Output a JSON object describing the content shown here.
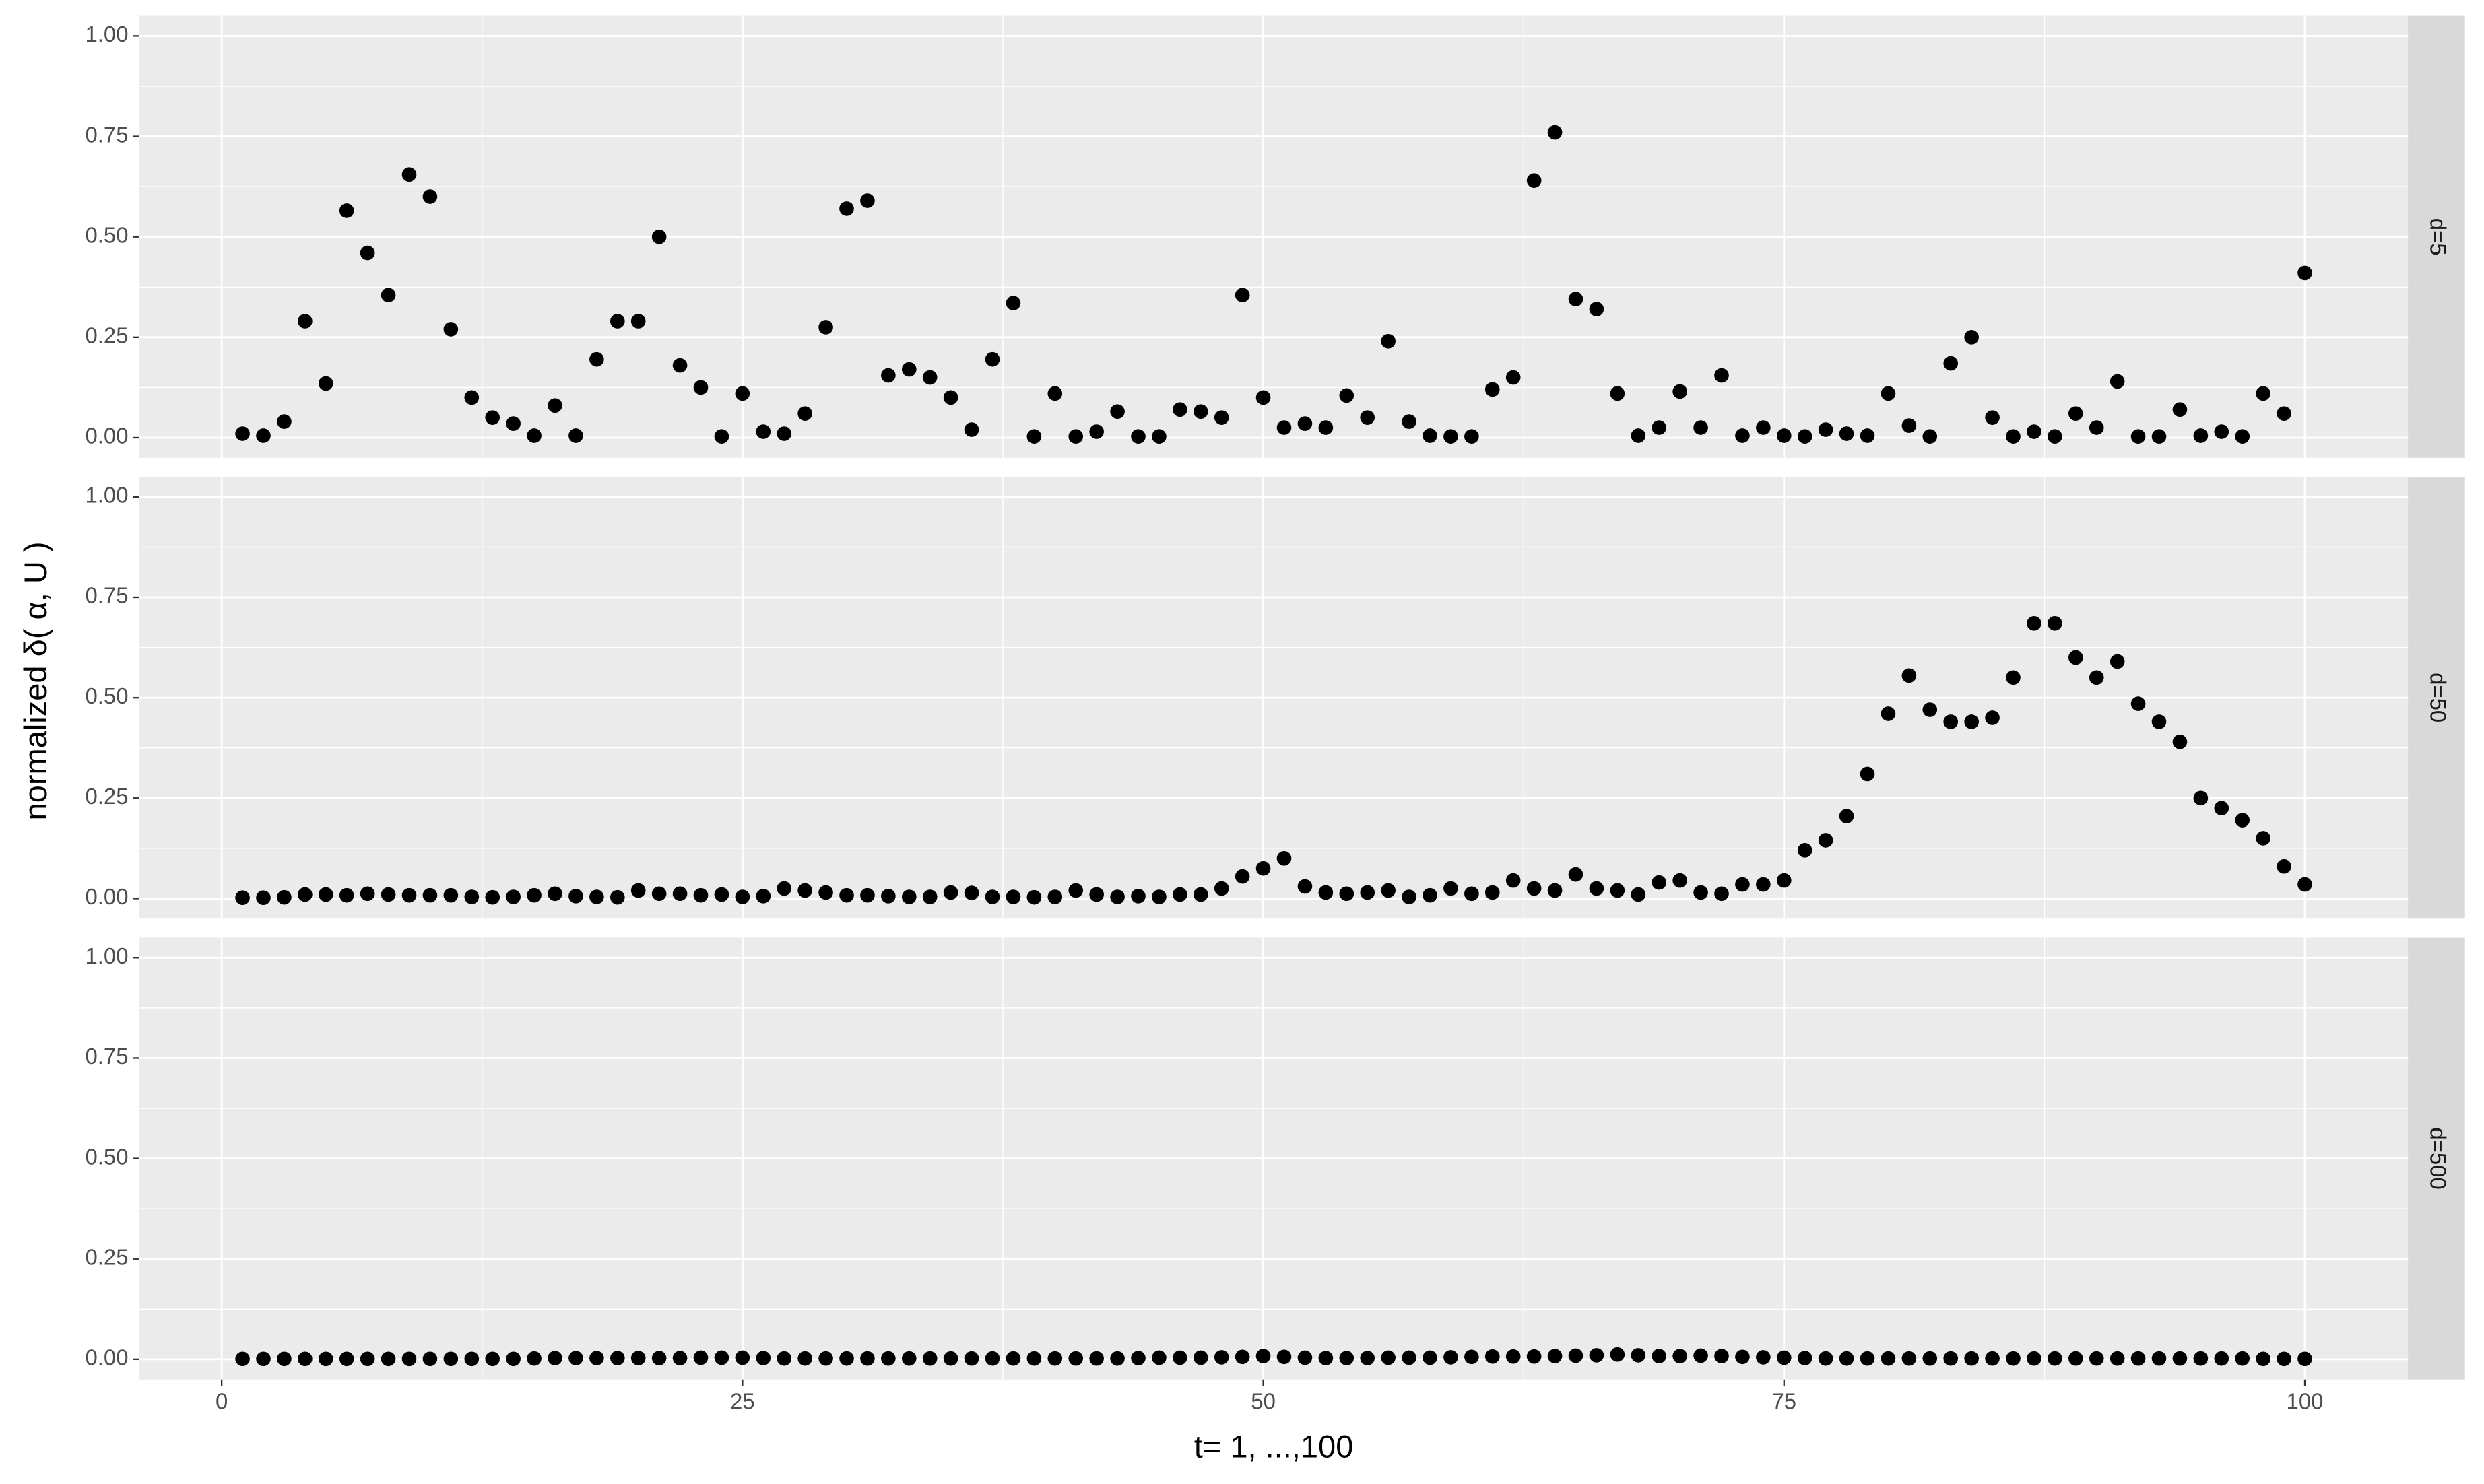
{
  "chart_data": [
    {
      "type": "scatter",
      "title": "d=5",
      "ylabel": "normalized δ( α, U )",
      "color": "#000000",
      "grid": true,
      "xlim": [
        -3.95,
        104.95
      ],
      "ylim": [
        -0.05,
        1.05
      ],
      "xticks": [
        0,
        25,
        50,
        75,
        100
      ],
      "yticks": [
        {
          "value": 0,
          "label": "0.00"
        },
        {
          "value": 0.25,
          "label": "0.25"
        },
        {
          "value": 0.5,
          "label": "0.50"
        },
        {
          "value": 0.75,
          "label": "0.75"
        },
        {
          "value": 1,
          "label": "1.00"
        }
      ],
      "x": [
        1,
        2,
        3,
        4,
        5,
        6,
        7,
        8,
        9,
        10,
        11,
        12,
        13,
        14,
        15,
        16,
        17,
        18,
        19,
        20,
        21,
        22,
        23,
        24,
        25,
        26,
        27,
        28,
        29,
        30,
        31,
        32,
        33,
        34,
        35,
        36,
        37,
        38,
        39,
        40,
        41,
        42,
        43,
        44,
        45,
        46,
        47,
        48,
        49,
        50,
        51,
        52,
        53,
        54,
        55,
        56,
        57,
        58,
        59,
        60,
        61,
        62,
        63,
        64,
        65,
        66,
        67,
        68,
        69,
        70,
        71,
        72,
        73,
        74,
        75,
        76,
        77,
        78,
        79,
        80,
        81,
        82,
        83,
        84,
        85,
        86,
        87,
        88,
        89,
        90,
        91,
        92,
        93,
        94,
        95,
        96,
        97,
        98,
        99,
        100
      ],
      "values": [
        0.01,
        0.005,
        0.04,
        0.29,
        0.135,
        0.565,
        0.46,
        0.355,
        0.655,
        0.6,
        0.27,
        0.1,
        0.05,
        0.035,
        0.005,
        0.08,
        0.005,
        0.195,
        0.29,
        0.29,
        0.5,
        0.18,
        0.125,
        0.003,
        0.11,
        0.015,
        0.01,
        0.06,
        0.275,
        0.57,
        0.59,
        0.155,
        0.17,
        0.15,
        0.1,
        0.02,
        0.195,
        0.335,
        0.003,
        0.11,
        0.003,
        0.015,
        0.065,
        0.003,
        0.003,
        0.07,
        0.065,
        0.05,
        0.355,
        0.1,
        0.025,
        0.035,
        0.025,
        0.105,
        0.05,
        0.24,
        0.04,
        0.005,
        0.003,
        0.003,
        0.12,
        0.15,
        0.64,
        0.76,
        0.345,
        0.32,
        0.11,
        0.005,
        0.025,
        0.115,
        0.025,
        0.155,
        0.005,
        0.025,
        0.005,
        0.003,
        0.02,
        0.01,
        0.005,
        0.11,
        0.03,
        0.003,
        0.185,
        0.25,
        0.05,
        0.003,
        0.015,
        0.003,
        0.06,
        0.025,
        0.14,
        0.003,
        0.003,
        0.07,
        0.005,
        0.015,
        0.003,
        0.11,
        0.06,
        0.41
      ]
    },
    {
      "type": "scatter",
      "title": "d=50",
      "color": "#000000",
      "grid": true,
      "xlim": [
        -3.95,
        104.95
      ],
      "ylim": [
        -0.05,
        1.05
      ],
      "xticks": [
        0,
        25,
        50,
        75,
        100
      ],
      "yticks": [
        {
          "value": 0,
          "label": "0.00"
        },
        {
          "value": 0.25,
          "label": "0.25"
        },
        {
          "value": 0.5,
          "label": "0.50"
        },
        {
          "value": 0.75,
          "label": "0.75"
        },
        {
          "value": 1,
          "label": "1.00"
        }
      ],
      "x": [
        1,
        2,
        3,
        4,
        5,
        6,
        7,
        8,
        9,
        10,
        11,
        12,
        13,
        14,
        15,
        16,
        17,
        18,
        19,
        20,
        21,
        22,
        23,
        24,
        25,
        26,
        27,
        28,
        29,
        30,
        31,
        32,
        33,
        34,
        35,
        36,
        37,
        38,
        39,
        40,
        41,
        42,
        43,
        44,
        45,
        46,
        47,
        48,
        49,
        50,
        51,
        52,
        53,
        54,
        55,
        56,
        57,
        58,
        59,
        60,
        61,
        62,
        63,
        64,
        65,
        66,
        67,
        68,
        69,
        70,
        71,
        72,
        73,
        74,
        75,
        76,
        77,
        78,
        79,
        80,
        81,
        82,
        83,
        84,
        85,
        86,
        87,
        88,
        89,
        90,
        91,
        92,
        93,
        94,
        95,
        96,
        97,
        98,
        99,
        100
      ],
      "values": [
        0.002,
        0.002,
        0.003,
        0.01,
        0.01,
        0.008,
        0.012,
        0.01,
        0.008,
        0.008,
        0.008,
        0.004,
        0.003,
        0.004,
        0.008,
        0.012,
        0.006,
        0.004,
        0.003,
        0.02,
        0.012,
        0.012,
        0.008,
        0.01,
        0.004,
        0.006,
        0.025,
        0.02,
        0.015,
        0.008,
        0.008,
        0.006,
        0.004,
        0.004,
        0.015,
        0.014,
        0.004,
        0.004,
        0.003,
        0.004,
        0.02,
        0.01,
        0.004,
        0.006,
        0.004,
        0.01,
        0.01,
        0.025,
        0.055,
        0.075,
        0.1,
        0.03,
        0.015,
        0.012,
        0.015,
        0.02,
        0.004,
        0.008,
        0.025,
        0.012,
        0.015,
        0.045,
        0.025,
        0.02,
        0.06,
        0.025,
        0.02,
        0.01,
        0.04,
        0.045,
        0.015,
        0.012,
        0.035,
        0.035,
        0.045,
        0.12,
        0.145,
        0.205,
        0.31,
        0.46,
        0.555,
        0.47,
        0.44,
        0.44,
        0.45,
        0.55,
        0.685,
        0.685,
        0.6,
        0.55,
        0.59,
        0.485,
        0.44,
        0.39,
        0.25,
        0.225,
        0.195,
        0.15,
        0.08,
        0.035
      ]
    },
    {
      "type": "scatter",
      "title": "d=500",
      "xlabel": "t= 1, ...,100",
      "color": "#000000",
      "grid": true,
      "xlim": [
        -3.95,
        104.95
      ],
      "ylim": [
        -0.05,
        1.05
      ],
      "xticks": [
        0,
        25,
        50,
        75,
        100
      ],
      "yticks": [
        {
          "value": 0,
          "label": "0.00"
        },
        {
          "value": 0.25,
          "label": "0.25"
        },
        {
          "value": 0.5,
          "label": "0.50"
        },
        {
          "value": 0.75,
          "label": "0.75"
        },
        {
          "value": 1,
          "label": "1.00"
        }
      ],
      "x": [
        1,
        2,
        3,
        4,
        5,
        6,
        7,
        8,
        9,
        10,
        11,
        12,
        13,
        14,
        15,
        16,
        17,
        18,
        19,
        20,
        21,
        22,
        23,
        24,
        25,
        26,
        27,
        28,
        29,
        30,
        31,
        32,
        33,
        34,
        35,
        36,
        37,
        38,
        39,
        40,
        41,
        42,
        43,
        44,
        45,
        46,
        47,
        48,
        49,
        50,
        51,
        52,
        53,
        54,
        55,
        56,
        57,
        58,
        59,
        60,
        61,
        62,
        63,
        64,
        65,
        66,
        67,
        68,
        69,
        70,
        71,
        72,
        73,
        74,
        75,
        76,
        77,
        78,
        79,
        80,
        81,
        82,
        83,
        84,
        85,
        86,
        87,
        88,
        89,
        90,
        91,
        92,
        93,
        94,
        95,
        96,
        97,
        98,
        99,
        100
      ],
      "values": [
        0.001,
        0.001,
        0.001,
        0.001,
        0.001,
        0.001,
        0.001,
        0.001,
        0.001,
        0.001,
        0.001,
        0.001,
        0.001,
        0.001,
        0.002,
        0.003,
        0.003,
        0.003,
        0.003,
        0.003,
        0.003,
        0.003,
        0.004,
        0.004,
        0.004,
        0.003,
        0.002,
        0.002,
        0.002,
        0.002,
        0.002,
        0.002,
        0.002,
        0.002,
        0.002,
        0.002,
        0.002,
        0.002,
        0.002,
        0.002,
        0.002,
        0.002,
        0.002,
        0.003,
        0.004,
        0.004,
        0.004,
        0.005,
        0.006,
        0.008,
        0.006,
        0.004,
        0.003,
        0.003,
        0.003,
        0.004,
        0.004,
        0.004,
        0.005,
        0.006,
        0.007,
        0.007,
        0.007,
        0.008,
        0.009,
        0.01,
        0.012,
        0.01,
        0.008,
        0.008,
        0.009,
        0.008,
        0.006,
        0.005,
        0.004,
        0.003,
        0.002,
        0.002,
        0.002,
        0.002,
        0.002,
        0.002,
        0.002,
        0.002,
        0.002,
        0.002,
        0.002,
        0.002,
        0.002,
        0.002,
        0.002,
        0.002,
        0.002,
        0.002,
        0.002,
        0.002,
        0.002,
        0.001,
        0.001,
        0.001
      ]
    }
  ]
}
